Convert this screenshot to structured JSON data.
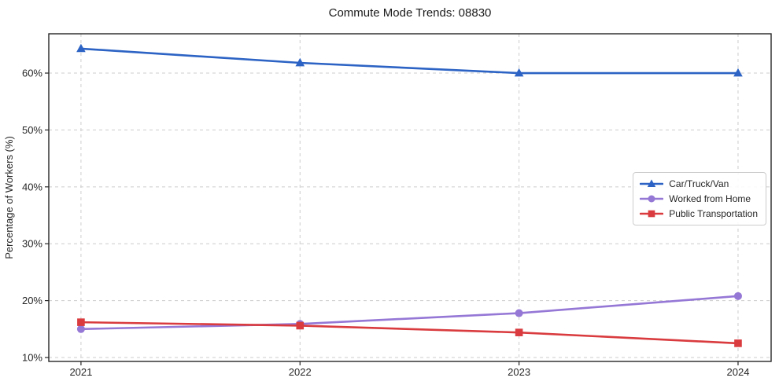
{
  "chart_data": {
    "type": "line",
    "title": "Commute Mode Trends: 08830",
    "xlabel": "",
    "ylabel": "Percentage of Workers (%)",
    "x": [
      2021,
      2022,
      2023,
      2024
    ],
    "x_tick_labels": [
      "2021",
      "2022",
      "2023",
      "2024"
    ],
    "y_ticks": [
      10,
      20,
      30,
      40,
      50,
      60
    ],
    "y_tick_labels": [
      "10%",
      "20%",
      "30%",
      "40%",
      "50%",
      "60%"
    ],
    "xlim": [
      2020.853,
      2024.151
    ],
    "ylim": [
      9.31,
      66.91
    ],
    "grid": true,
    "grid_style": "dashed",
    "legend_position": "center-right",
    "series": [
      {
        "name": "Car/Truck/Van",
        "marker": "triangle",
        "color": "#2c63c4",
        "values": [
          64.3,
          61.8,
          60.0,
          60.0
        ]
      },
      {
        "name": "Worked from Home",
        "marker": "circle",
        "color": "#9577d6",
        "values": [
          15.0,
          15.9,
          17.8,
          20.8
        ]
      },
      {
        "name": "Public Transportation",
        "marker": "square",
        "color": "#d93b3e",
        "values": [
          16.2,
          15.6,
          14.4,
          12.5
        ]
      }
    ],
    "colors": {
      "grid": "#cccccc",
      "spine": "#262626",
      "tick_label": "#262626",
      "title": "#1a1a1a",
      "background": "#ffffff"
    }
  }
}
